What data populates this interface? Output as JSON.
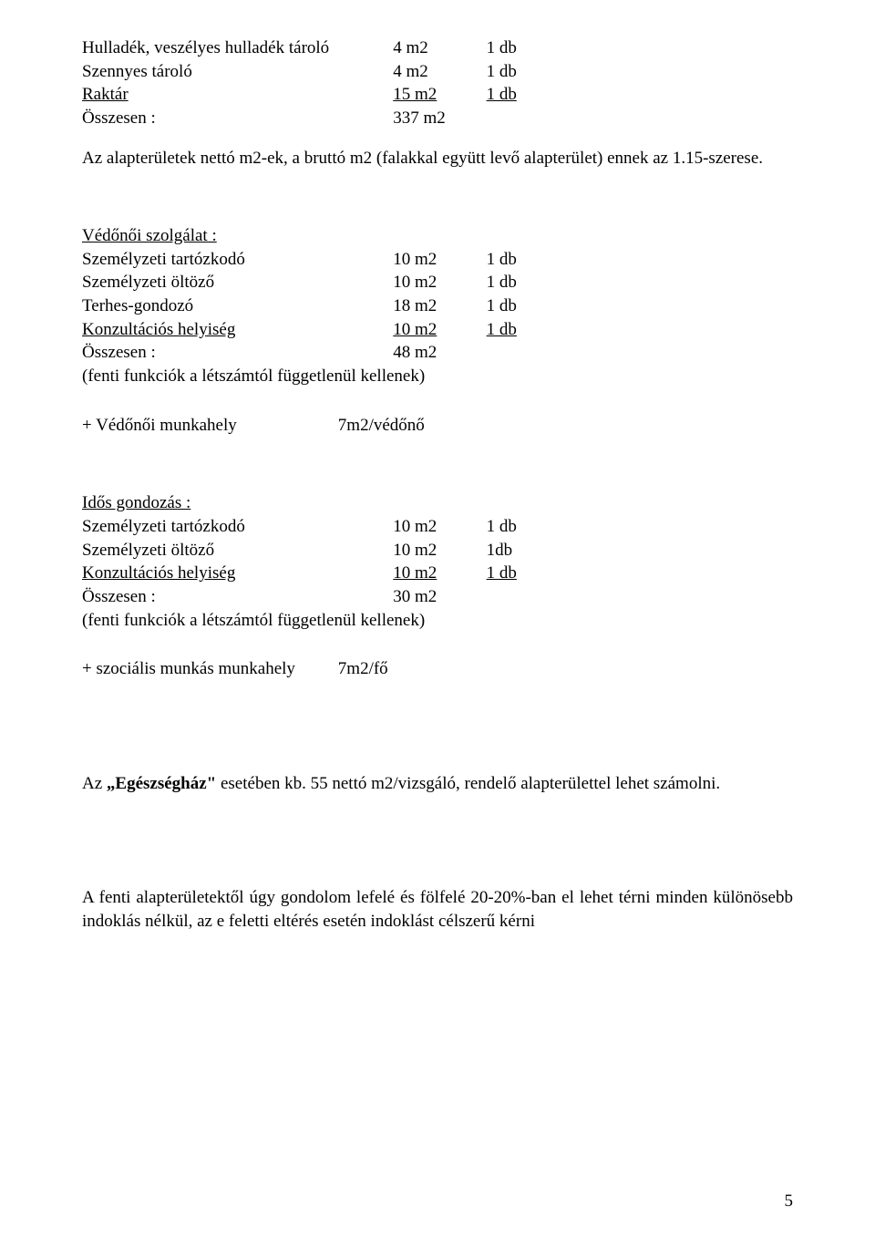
{
  "top_table": {
    "rows": [
      {
        "name": "Hulladék, veszélyes hulladék tároló",
        "area": "4 m2",
        "qty": "1 db",
        "underline": false
      },
      {
        "name": "Szennyes tároló",
        "area": "4 m2",
        "qty": "1 db",
        "underline": false
      },
      {
        "name": "Raktár",
        "area": "15 m2",
        "qty": "1 db",
        "underline": true
      },
      {
        "name": "Összesen :",
        "area": "337 m2",
        "qty": "",
        "underline": false
      }
    ]
  },
  "intro_para": "Az alapterületek nettó m2-ek, a bruttó m2 (falakkal együtt levő alapterület) ennek az 1.15-szerese.",
  "vedonoi": {
    "heading": "Védőnői szolgálat :",
    "rows": [
      {
        "name": "Személyzeti tartózkodó",
        "area": "10 m2",
        "qty": "1 db",
        "underline": false
      },
      {
        "name": "Személyzeti öltöző",
        "area": "10 m2",
        "qty": "1 db",
        "underline": false
      },
      {
        "name": "Terhes-gondozó",
        "area": "18 m2",
        "qty": "1 db",
        "underline": false
      },
      {
        "name": "Konzultációs helyiség",
        "area": "10 m2",
        "qty": "1 db",
        "underline": true
      },
      {
        "name": "Összesen :",
        "area": "48 m2",
        "qty": "",
        "underline": false
      }
    ],
    "note": "(fenti funkciók a létszámtól függetlenül kellenek)",
    "extra_label": "+ Védőnői munkahely",
    "extra_value": "7m2/védőnő"
  },
  "idos": {
    "heading": "Idős gondozás :",
    "rows": [
      {
        "name": "Személyzeti tartózkodó",
        "area": "10 m2",
        "qty": "1 db",
        "underline": false
      },
      {
        "name": "Személyzeti öltöző",
        "area": "10 m2",
        "qty": "1db",
        "underline": false
      },
      {
        "name": "Konzultációs helyiség",
        "area": "10 m2",
        "qty": "1 db",
        "underline": true
      },
      {
        "name": "Összesen :",
        "area": "30 m2",
        "qty": "",
        "underline": false
      }
    ],
    "note": "(fenti funkciók a létszámtól függetlenül kellenek)",
    "extra_label": "+ szociális munkás munkahely",
    "extra_value": "7m2/fő"
  },
  "egeszseghaz": {
    "pre": "Az ",
    "bold": "„Egészségház\"",
    "post": " esetében kb. 55 nettó m2/vizsgáló, rendelő alapterülettel lehet számolni."
  },
  "closing": "A fenti alapterületektől úgy gondolom lefelé és fölfelé 20-20%-ban el lehet térni minden különösebb indoklás nélkül, az e feletti eltérés esetén indoklást célszerű kérni",
  "page_number": "5"
}
